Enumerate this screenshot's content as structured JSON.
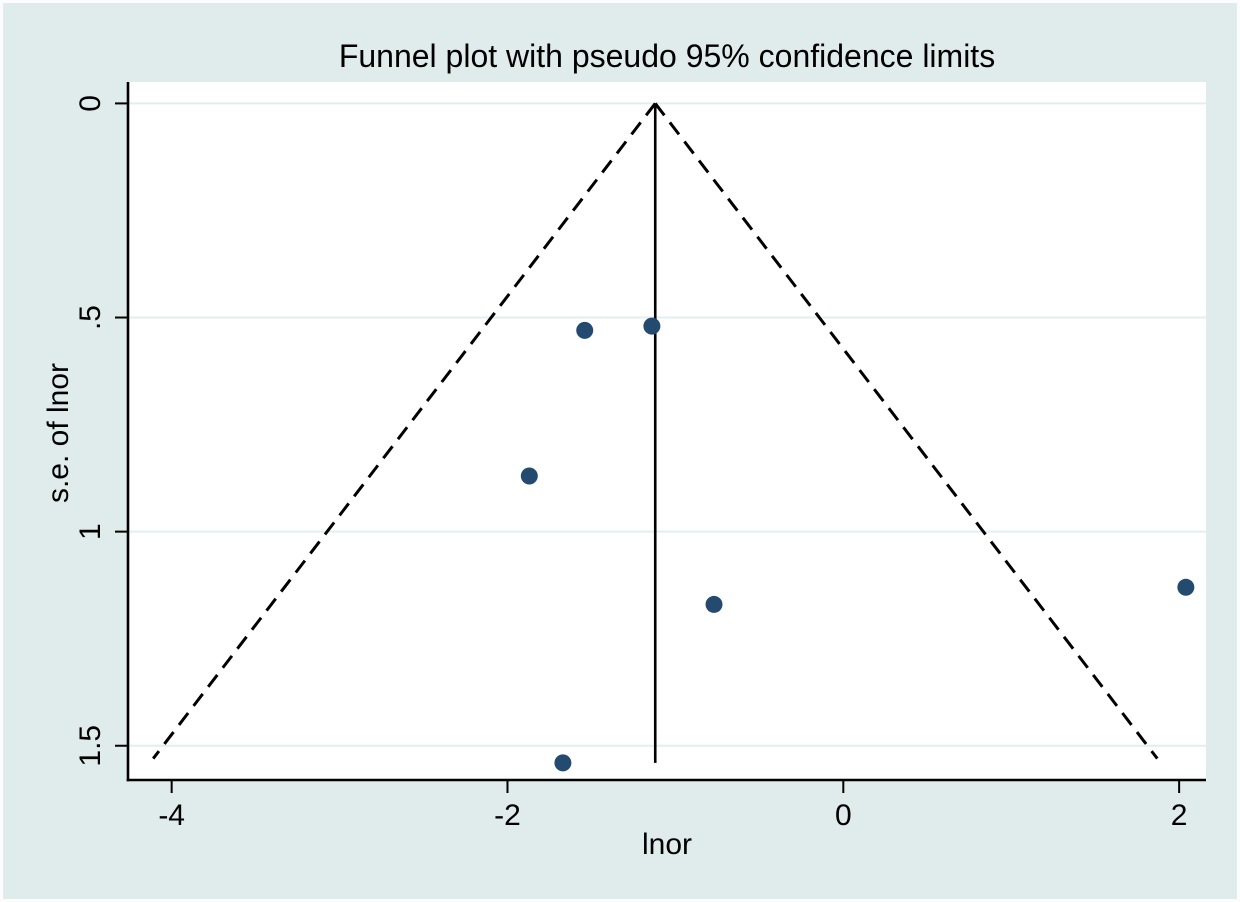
{
  "window": {
    "background_color": "#e0ebeb",
    "plot_background_color": "#ffffff"
  },
  "chart_data": {
    "type": "scatter",
    "title": "Funnel plot with pseudo 95% confidence limits",
    "xlabel": "lnor",
    "ylabel": "s.e. of lnor",
    "xlim": [
      -4.26,
      2.16
    ],
    "ylim": [
      -0.05,
      1.58
    ],
    "y_axis_inverted": true,
    "grid": "horizontal",
    "legend": "none",
    "xtick_values": [
      -4,
      -2,
      0,
      2
    ],
    "xtick_labels": [
      "-4",
      "-2",
      "0",
      "2"
    ],
    "ytick_values": [
      0,
      0.5,
      1,
      1.5
    ],
    "ytick_labels": [
      "0",
      ".5",
      "1",
      "1.5"
    ],
    "points": [
      {
        "lnor": -1.54,
        "se": 0.53
      },
      {
        "lnor": -1.14,
        "se": 0.52
      },
      {
        "lnor": -1.87,
        "se": 0.87
      },
      {
        "lnor": -0.77,
        "se": 1.17
      },
      {
        "lnor": 2.04,
        "se": 1.13
      },
      {
        "lnor": -1.67,
        "se": 1.54
      }
    ],
    "estimate_line": {
      "x": -1.12,
      "se_from": 0,
      "se_to": 1.54
    },
    "pseudo_ci_limits": {
      "apex": {
        "x": -1.12,
        "se": 0
      },
      "left_end": {
        "x": -4.11,
        "se": 1.53
      },
      "right_end": {
        "x": 1.87,
        "se": 1.53
      },
      "multiplier": 1.96,
      "confidence_level": "95%"
    },
    "colors": {
      "marker": "#254a6f",
      "grid": "#e3efef",
      "axis": "#000000",
      "funnel_line": "#000000",
      "background": "#e0ebeb",
      "plot_background": "#ffffff"
    }
  }
}
